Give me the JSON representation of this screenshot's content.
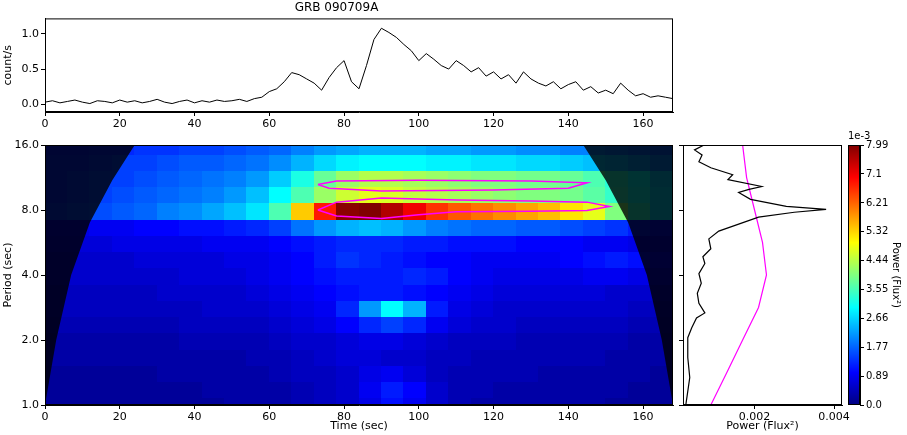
{
  "chart_data": [
    {
      "type": "line",
      "title": "GRB 090709A",
      "y_label": "count/s",
      "color": "#000000",
      "grid": false,
      "x": [
        0,
        2,
        4,
        6,
        8,
        10,
        12,
        14,
        16,
        18,
        20,
        22,
        24,
        26,
        28,
        30,
        32,
        34,
        36,
        38,
        40,
        42,
        44,
        46,
        48,
        50,
        52,
        54,
        56,
        58,
        60,
        62,
        64,
        66,
        68,
        70,
        72,
        74,
        76,
        78,
        80,
        82,
        84,
        86,
        88,
        90,
        92,
        94,
        96,
        98,
        100,
        102,
        104,
        106,
        108,
        110,
        112,
        114,
        116,
        118,
        120,
        122,
        124,
        126,
        128,
        130,
        132,
        134,
        136,
        138,
        140,
        142,
        144,
        146,
        148,
        150,
        152,
        154,
        156,
        158,
        160,
        162,
        164,
        166,
        168
      ],
      "values": [
        0.03,
        0.05,
        0.02,
        0.04,
        0.06,
        0.03,
        0.01,
        0.05,
        0.04,
        0.02,
        0.06,
        0.03,
        0.05,
        0.02,
        0.04,
        0.07,
        0.03,
        0.01,
        0.04,
        0.06,
        0.02,
        0.05,
        0.03,
        0.06,
        0.04,
        0.05,
        0.07,
        0.04,
        0.08,
        0.1,
        0.18,
        0.22,
        0.32,
        0.45,
        0.42,
        0.36,
        0.3,
        0.2,
        0.38,
        0.52,
        0.62,
        0.32,
        0.22,
        0.55,
        0.92,
        1.08,
        1.02,
        0.95,
        0.85,
        0.76,
        0.62,
        0.72,
        0.64,
        0.55,
        0.5,
        0.62,
        0.55,
        0.46,
        0.52,
        0.4,
        0.46,
        0.36,
        0.42,
        0.3,
        0.46,
        0.36,
        0.3,
        0.26,
        0.32,
        0.22,
        0.28,
        0.32,
        0.2,
        0.25,
        0.16,
        0.2,
        0.15,
        0.3,
        0.2,
        0.12,
        0.15,
        0.1,
        0.12,
        0.1,
        0.08
      ],
      "xlim": [
        0,
        168
      ],
      "xticks": [
        0,
        20,
        40,
        60,
        80,
        100,
        120,
        140,
        160
      ],
      "ylim": [
        -0.11,
        1.22
      ],
      "yticks": [
        {
          "value": 0,
          "label": "0.0"
        },
        {
          "value": 0.5,
          "label": "0.5"
        },
        {
          "value": 1,
          "label": "1.0"
        }
      ]
    },
    {
      "type": "heatmap",
      "x_label": "Time (sec)",
      "y_label": "Period (sec)",
      "log": "y",
      "grid": false,
      "xlim": [
        0,
        168
      ],
      "xticks": [
        0,
        20,
        40,
        60,
        80,
        100,
        120,
        140,
        160
      ],
      "ylim": [
        1,
        16
      ],
      "yticks": [
        {
          "value": 1,
          "label": "1.0"
        },
        {
          "value": 2,
          "label": "2.0"
        },
        {
          "value": 4,
          "label": "4.0"
        },
        {
          "value": 8,
          "label": "8.0"
        },
        {
          "value": 16,
          "label": "16.0"
        }
      ],
      "time_edges": [
        0,
        6,
        12,
        18,
        24,
        30,
        36,
        42,
        48,
        54,
        60,
        66,
        72,
        78,
        84,
        90,
        96,
        102,
        108,
        114,
        120,
        126,
        132,
        138,
        144,
        150,
        156,
        162,
        168
      ],
      "period_edges": [
        0.917,
        1.091,
        1.297,
        1.542,
        1.834,
        2.181,
        2.594,
        3.084,
        3.668,
        4.362,
        5.187,
        6.169,
        7.336,
        8.724,
        10.375,
        12.338,
        14.672,
        17.448
      ],
      "cells": [
        [
          0.2,
          0.2,
          0.2,
          0.2,
          0.2,
          0.2,
          0.2,
          0.2,
          0.3,
          0.3,
          0.3,
          0.4,
          0.5,
          0.6,
          0.8,
          1.1,
          0.9,
          0.6,
          0.4,
          0.3,
          0.3,
          0.3,
          0.3,
          0.3,
          0.3,
          0.2,
          0.2,
          0.2
        ],
        [
          0.2,
          0.2,
          0.2,
          0.2,
          0.2,
          0.2,
          0.2,
          0.3,
          0.3,
          0.3,
          0.3,
          0.4,
          0.5,
          0.6,
          0.9,
          1.2,
          1.0,
          0.6,
          0.4,
          0.4,
          0.3,
          0.3,
          0.3,
          0.3,
          0.3,
          0.3,
          0.2,
          0.2
        ],
        [
          0.2,
          0.2,
          0.2,
          0.2,
          0.2,
          0.3,
          0.3,
          0.3,
          0.3,
          0.3,
          0.4,
          0.5,
          0.5,
          0.6,
          0.8,
          0.9,
          0.7,
          0.5,
          0.4,
          0.4,
          0.4,
          0.4,
          0.3,
          0.3,
          0.3,
          0.3,
          0.3,
          0.2
        ],
        [
          0.3,
          0.3,
          0.3,
          0.3,
          0.3,
          0.3,
          0.3,
          0.3,
          0.3,
          0.4,
          0.4,
          0.5,
          0.6,
          0.7,
          0.7,
          0.6,
          0.6,
          0.5,
          0.5,
          0.4,
          0.4,
          0.4,
          0.4,
          0.4,
          0.4,
          0.3,
          0.3,
          0.3
        ],
        [
          0.3,
          0.3,
          0.3,
          0.3,
          0.3,
          0.3,
          0.4,
          0.4,
          0.4,
          0.4,
          0.5,
          0.6,
          0.6,
          0.7,
          0.8,
          0.8,
          0.7,
          0.6,
          0.5,
          0.5,
          0.5,
          0.4,
          0.4,
          0.4,
          0.4,
          0.4,
          0.3,
          0.3
        ],
        [
          0.4,
          0.4,
          0.4,
          0.4,
          0.4,
          0.4,
          0.5,
          0.5,
          0.5,
          0.5,
          0.6,
          0.7,
          0.8,
          1.0,
          1.3,
          1.5,
          1.3,
          0.9,
          0.7,
          0.6,
          0.6,
          0.5,
          0.5,
          0.5,
          0.5,
          0.5,
          0.4,
          0.4
        ],
        [
          0.5,
          0.5,
          0.5,
          0.5,
          0.5,
          0.5,
          0.5,
          0.6,
          0.6,
          0.6,
          0.7,
          0.8,
          0.9,
          1.3,
          2.2,
          3.0,
          2.4,
          1.2,
          0.8,
          0.7,
          0.6,
          0.6,
          0.6,
          0.6,
          0.6,
          0.6,
          0.5,
          0.5
        ],
        [
          0.5,
          0.5,
          0.5,
          0.5,
          0.5,
          0.6,
          0.6,
          0.6,
          0.6,
          0.7,
          0.8,
          0.9,
          1.0,
          1.1,
          1.2,
          1.2,
          1.1,
          1.0,
          0.9,
          0.8,
          0.7,
          0.7,
          0.7,
          0.7,
          0.7,
          0.6,
          0.6,
          0.6
        ],
        [
          0.6,
          0.6,
          0.6,
          0.6,
          0.6,
          0.6,
          0.7,
          0.7,
          0.7,
          0.8,
          0.9,
          1.0,
          1.1,
          1.2,
          1.2,
          1.2,
          1.3,
          1.2,
          1.0,
          0.9,
          0.8,
          0.8,
          0.8,
          0.8,
          0.9,
          0.9,
          0.8,
          0.8
        ],
        [
          0.6,
          0.6,
          0.6,
          0.6,
          0.7,
          0.7,
          0.7,
          0.7,
          0.8,
          0.8,
          0.9,
          1.0,
          1.2,
          1.4,
          1.3,
          1.2,
          1.1,
          1.0,
          1.0,
          0.9,
          0.9,
          0.9,
          0.9,
          1.0,
          1.1,
          1.2,
          1.1,
          1.0
        ],
        [
          0.7,
          0.7,
          0.7,
          0.8,
          0.8,
          0.8,
          0.8,
          0.9,
          0.9,
          0.9,
          1.0,
          1.1,
          1.2,
          1.3,
          1.3,
          1.3,
          1.2,
          1.2,
          1.1,
          1.1,
          1.1,
          1.0,
          1.0,
          1.0,
          0.9,
          0.9,
          0.8,
          0.8
        ],
        [
          0.8,
          0.8,
          0.9,
          0.9,
          1.0,
          1.0,
          1.1,
          1.1,
          1.2,
          1.3,
          1.5,
          1.9,
          2.2,
          2.4,
          2.5,
          2.4,
          2.2,
          2.0,
          1.9,
          1.8,
          1.8,
          1.7,
          1.7,
          1.6,
          1.5,
          1.4,
          1.2,
          1.1
        ],
        [
          1.4,
          1.5,
          1.6,
          1.7,
          1.8,
          2.0,
          2.1,
          2.3,
          2.5,
          2.8,
          3.6,
          5.4,
          6.8,
          7.9,
          7.99,
          7.6,
          7.1,
          6.6,
          6.3,
          6.1,
          5.9,
          5.7,
          5.5,
          5.2,
          4.8,
          4.0,
          3.3,
          2.7
        ],
        [
          1.3,
          1.4,
          1.5,
          1.6,
          1.7,
          1.8,
          1.9,
          2.0,
          2.2,
          2.5,
          3.0,
          3.6,
          4.2,
          4.6,
          4.8,
          4.7,
          4.5,
          4.4,
          4.3,
          4.2,
          4.1,
          4.0,
          4.0,
          3.9,
          3.7,
          3.4,
          3.1,
          2.7
        ],
        [
          1.3,
          1.4,
          1.5,
          1.5,
          1.6,
          1.7,
          1.8,
          1.9,
          2.0,
          2.2,
          2.6,
          3.2,
          3.8,
          4.2,
          4.4,
          4.4,
          4.3,
          4.2,
          4.1,
          4.0,
          4.0,
          3.9,
          3.9,
          3.8,
          3.6,
          3.3,
          3.0,
          2.6
        ],
        [
          1.3,
          1.3,
          1.4,
          1.5,
          1.5,
          1.6,
          1.7,
          1.7,
          1.8,
          1.9,
          2.1,
          2.4,
          2.7,
          2.9,
          3.0,
          3.0,
          3.0,
          2.9,
          2.9,
          2.8,
          2.8,
          2.7,
          2.7,
          2.6,
          2.5,
          2.4,
          2.2,
          2.0
        ],
        [
          1.2,
          1.2,
          1.3,
          1.3,
          1.4,
          1.4,
          1.5,
          1.5,
          1.6,
          1.7,
          1.8,
          2.0,
          2.2,
          2.3,
          2.4,
          2.4,
          2.4,
          2.3,
          2.3,
          2.2,
          2.2,
          2.1,
          2.1,
          2.0,
          2.0,
          1.9,
          1.8,
          1.7
        ]
      ],
      "contours": [
        {
          "color": "#ff00ff",
          "x": [
            73,
            78,
            90,
            110,
            130,
            145,
            151,
            145,
            130,
            110,
            100,
            90,
            78,
            73
          ],
          "y": [
            8.0,
            8.7,
            9.1,
            8.9,
            8.8,
            8.7,
            8.3,
            7.95,
            7.9,
            7.85,
            7.6,
            7.3,
            7.5,
            8.0
          ]
        },
        {
          "color": "#ff00ff",
          "x": [
            73,
            78,
            100,
            130,
            145,
            140,
            120,
            90,
            76,
            73
          ],
          "y": [
            10.5,
            10.9,
            11.0,
            10.9,
            10.7,
            10.1,
            9.9,
            9.8,
            10.1,
            10.5
          ]
        }
      ],
      "cone_of_influence": {
        "time": [
          0,
          3,
          7,
          12,
          18,
          24,
          144,
          150,
          156,
          161,
          165,
          168
        ],
        "period": [
          1,
          2,
          4,
          7,
          11,
          16,
          16,
          11,
          7,
          4,
          2,
          1
        ]
      },
      "colorbar": {
        "range": [
          0,
          7.99
        ],
        "ticks": [
          {
            "value": 0,
            "label": "0.0"
          },
          0.89,
          1.77,
          2.66,
          3.55,
          4.44,
          5.32,
          6.21,
          7.1,
          7.99
        ],
        "label": "Power (Flux²)",
        "offset_label": "1e-3"
      }
    },
    {
      "type": "line",
      "x_label": "Power (Flux²)",
      "log": "y",
      "tick_labels": "x",
      "grid": false,
      "xlim": [
        0.0002,
        0.0042
      ],
      "xticks": [
        0.002,
        0.004
      ],
      "ylim": [
        1,
        16
      ],
      "yticks": [
        1,
        2,
        4,
        8,
        16
      ],
      "series": [
        {
          "color": "#000000",
          "x": [
            0.00073,
            0.00049,
            0.00068,
            0.0006,
            0.0009,
            0.00145,
            0.00133,
            0.00218,
            0.00186,
            0.0016,
            0.0019,
            0.0028,
            0.0038,
            0.003,
            0.0021,
            0.0016,
            0.0011,
            0.00085,
            0.0009,
            0.0007,
            0.00075,
            0.0006,
            0.00066,
            0.00056,
            0.0006,
            0.00075,
            0.00054,
            0.00042,
            0.00032,
            0.00032,
            0.00037,
            0.0003,
            0.00027
          ],
          "y": [
            16,
            15.18,
            14.4,
            13.37,
            12.56,
            11.66,
            11.06,
            10.28,
            9.96,
            9.65,
            8.96,
            8.32,
            8.06,
            7.81,
            7.41,
            6.88,
            6.39,
            5.88,
            5.29,
            4.86,
            4.52,
            4.06,
            3.66,
            3.29,
            2.96,
            2.67,
            2.53,
            2.28,
            2.05,
            1.66,
            1.34,
            1.09,
            1
          ]
        },
        {
          "color": "#ff00ff",
          "x": [
            0.0017,
            0.0018,
            0.002,
            0.0022,
            0.0023,
            0.0021,
            0.0017,
            0.0013,
            0.0009
          ],
          "y": [
            16,
            11.3,
            8,
            5.66,
            4,
            2.83,
            2,
            1.41,
            1
          ]
        }
      ]
    }
  ]
}
